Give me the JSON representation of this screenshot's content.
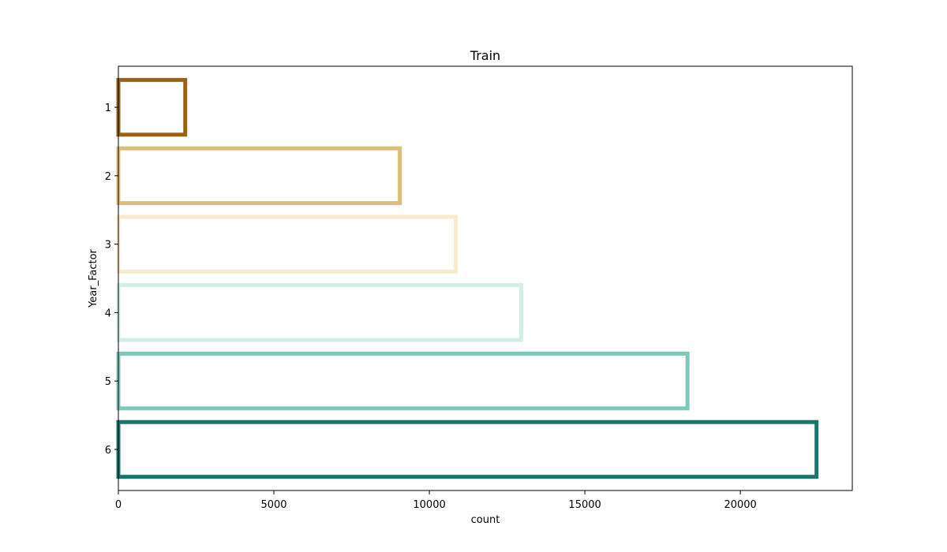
{
  "chart_data": {
    "type": "bar",
    "orientation": "horizontal",
    "title": "Train",
    "xlabel": "count",
    "ylabel": "Year_Factor",
    "categories": [
      "1",
      "2",
      "3",
      "4",
      "5",
      "6"
    ],
    "values": [
      2150,
      9050,
      10850,
      12950,
      18300,
      22450
    ],
    "colors": [
      "#996017",
      "#dfbd78",
      "#f6ebcc",
      "#d3ede8",
      "#80c7bb",
      "#1c756b"
    ],
    "xlim": [
      0,
      23600
    ],
    "xticks": [
      0,
      5000,
      10000,
      15000,
      20000
    ],
    "xtick_labels": [
      "0",
      "5000",
      "10000",
      "15000",
      "20000"
    ],
    "grid": false,
    "legend": false
  }
}
